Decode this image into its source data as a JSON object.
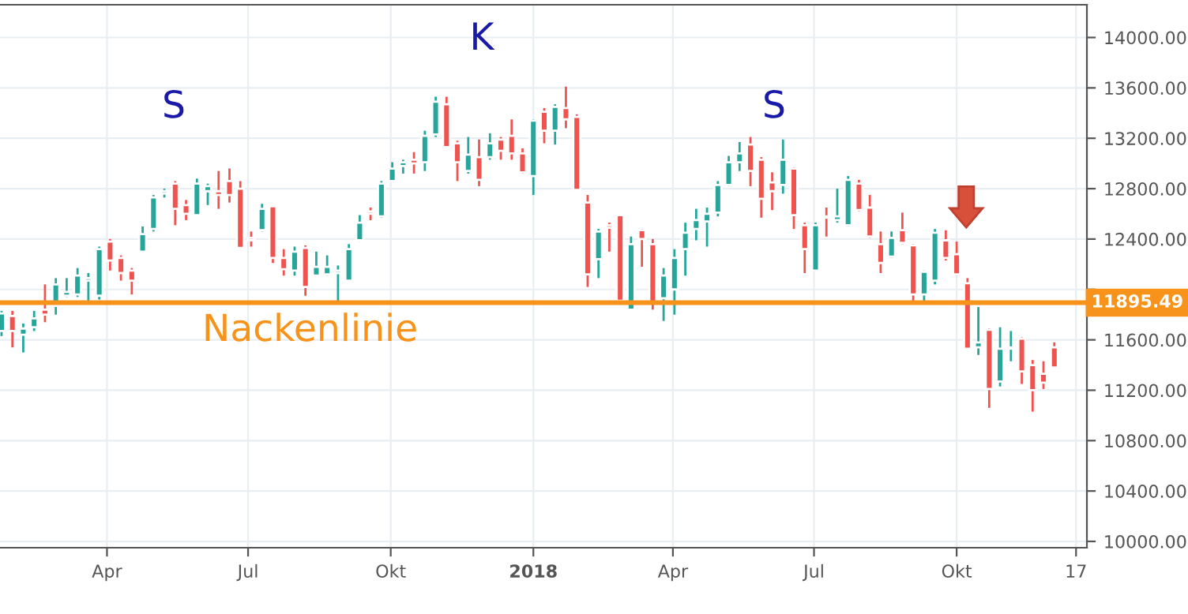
{
  "chart_data": {
    "type": "candlestick",
    "x": [
      "2017-01-23",
      "2017-01-30",
      "2017-02-06",
      "2017-02-13",
      "2017-02-20",
      "2017-02-27",
      "2017-03-06",
      "2017-03-13",
      "2017-03-20",
      "2017-03-27",
      "2017-04-03",
      "2017-04-10",
      "2017-04-17",
      "2017-04-24",
      "2017-05-01",
      "2017-05-08",
      "2017-05-15",
      "2017-05-22",
      "2017-05-29",
      "2017-06-05",
      "2017-06-12",
      "2017-06-19",
      "2017-06-26",
      "2017-07-03",
      "2017-07-10",
      "2017-07-17",
      "2017-07-24",
      "2017-07-31",
      "2017-08-07",
      "2017-08-14",
      "2017-08-21",
      "2017-08-28",
      "2017-09-04",
      "2017-09-11",
      "2017-09-18",
      "2017-09-25",
      "2017-10-02",
      "2017-10-09",
      "2017-10-16",
      "2017-10-23",
      "2017-10-30",
      "2017-11-06",
      "2017-11-13",
      "2017-11-20",
      "2017-11-27",
      "2017-12-04",
      "2017-12-11",
      "2017-12-18",
      "2017-12-25",
      "2018-01-01",
      "2018-01-08",
      "2018-01-15",
      "2018-01-22",
      "2018-01-29",
      "2018-02-05",
      "2018-02-12",
      "2018-02-19",
      "2018-02-26",
      "2018-03-05",
      "2018-03-12",
      "2018-03-19",
      "2018-03-26",
      "2018-04-02",
      "2018-04-09",
      "2018-04-16",
      "2018-04-23",
      "2018-04-30",
      "2018-05-07",
      "2018-05-14",
      "2018-05-21",
      "2018-05-28",
      "2018-06-04",
      "2018-06-11",
      "2018-06-18",
      "2018-06-25",
      "2018-07-02",
      "2018-07-09",
      "2018-07-16",
      "2018-07-23",
      "2018-07-30",
      "2018-08-06",
      "2018-08-13",
      "2018-08-20",
      "2018-08-27",
      "2018-09-03",
      "2018-09-10",
      "2018-09-17",
      "2018-09-24",
      "2018-10-01",
      "2018-10-08",
      "2018-10-15",
      "2018-10-22",
      "2018-10-29",
      "2018-11-05",
      "2018-11-12",
      "2018-11-19",
      "2018-11-26",
      "2018-12-03"
    ],
    "ohlc": [
      [
        11670,
        11830,
        11630,
        11810
      ],
      [
        11790,
        11830,
        11540,
        11670
      ],
      [
        11640,
        11730,
        11500,
        11690
      ],
      [
        11700,
        11830,
        11670,
        11770
      ],
      [
        11840,
        12040,
        11740,
        11800
      ],
      [
        11870,
        12090,
        11800,
        12040
      ],
      [
        11950,
        12090,
        11940,
        11980
      ],
      [
        11960,
        12170,
        11940,
        12110
      ],
      [
        12070,
        12130,
        11880,
        12090
      ],
      [
        11950,
        12340,
        11920,
        12320
      ],
      [
        12380,
        12400,
        12150,
        12230
      ],
      [
        12250,
        12270,
        12070,
        12130
      ],
      [
        12150,
        12170,
        11960,
        12070
      ],
      [
        12300,
        12500,
        12300,
        12440
      ],
      [
        12480,
        12750,
        12460,
        12730
      ],
      [
        12760,
        12800,
        12730,
        12780
      ],
      [
        12840,
        12860,
        12510,
        12640
      ],
      [
        12670,
        12710,
        12550,
        12600
      ],
      [
        12590,
        12880,
        12590,
        12840
      ],
      [
        12780,
        12840,
        12670,
        12820
      ],
      [
        12780,
        12940,
        12640,
        12750
      ],
      [
        12860,
        12960,
        12690,
        12750
      ],
      [
        12800,
        12860,
        12330,
        12330
      ],
      [
        12410,
        12460,
        12340,
        12390
      ],
      [
        12470,
        12680,
        12460,
        12640
      ],
      [
        12660,
        12660,
        12210,
        12250
      ],
      [
        12250,
        12320,
        12110,
        12160
      ],
      [
        12150,
        12340,
        12110,
        12300
      ],
      [
        12330,
        12350,
        11950,
        12020
      ],
      [
        12110,
        12300,
        12110,
        12180
      ],
      [
        12120,
        12270,
        12110,
        12180
      ],
      [
        12130,
        12190,
        11900,
        12150
      ],
      [
        12070,
        12360,
        12070,
        12320
      ],
      [
        12390,
        12590,
        12380,
        12530
      ],
      [
        12620,
        12650,
        12550,
        12600
      ],
      [
        12580,
        12860,
        12570,
        12840
      ],
      [
        12860,
        13010,
        12860,
        12960
      ],
      [
        12980,
        13030,
        12920,
        13010
      ],
      [
        13030,
        13090,
        12920,
        13000
      ],
      [
        13010,
        13260,
        12940,
        13220
      ],
      [
        13230,
        13530,
        13210,
        13490
      ],
      [
        13470,
        13530,
        13130,
        13130
      ],
      [
        13160,
        13180,
        12860,
        13010
      ],
      [
        12940,
        13210,
        12920,
        13070
      ],
      [
        13050,
        13190,
        12820,
        12870
      ],
      [
        13050,
        13240,
        13030,
        13160
      ],
      [
        13190,
        13210,
        13030,
        13100
      ],
      [
        13220,
        13350,
        13030,
        13080
      ],
      [
        13080,
        13120,
        12920,
        12930
      ],
      [
        12900,
        13350,
        12750,
        13340
      ],
      [
        13410,
        13440,
        13160,
        13260
      ],
      [
        13260,
        13470,
        13150,
        13450
      ],
      [
        13440,
        13610,
        13280,
        13350
      ],
      [
        13370,
        13390,
        12790,
        12790
      ],
      [
        12690,
        12750,
        12020,
        12120
      ],
      [
        12240,
        12480,
        12090,
        12460
      ],
      [
        12510,
        12530,
        12300,
        12490
      ],
      [
        12590,
        12590,
        11900,
        11910
      ],
      [
        11840,
        12420,
        11840,
        12360
      ],
      [
        12470,
        12480,
        12180,
        12400
      ],
      [
        12360,
        12400,
        11840,
        11890
      ],
      [
        11930,
        12170,
        11750,
        12110
      ],
      [
        12000,
        12320,
        11800,
        12250
      ],
      [
        12320,
        12530,
        12110,
        12450
      ],
      [
        12480,
        12640,
        12390,
        12550
      ],
      [
        12540,
        12650,
        12340,
        12600
      ],
      [
        12610,
        12860,
        12580,
        12830
      ],
      [
        12830,
        13060,
        12820,
        13010
      ],
      [
        13010,
        13170,
        12940,
        13080
      ],
      [
        13150,
        13210,
        12820,
        12940
      ],
      [
        13030,
        13050,
        12570,
        12720
      ],
      [
        12850,
        12930,
        12630,
        12780
      ],
      [
        12830,
        13190,
        12760,
        13030
      ],
      [
        12960,
        12970,
        12480,
        12590
      ],
      [
        12510,
        12530,
        12130,
        12320
      ],
      [
        12150,
        12530,
        12150,
        12510
      ],
      [
        12580,
        12650,
        12420,
        12570
      ],
      [
        12550,
        12800,
        12530,
        12580
      ],
      [
        12510,
        12900,
        12500,
        12870
      ],
      [
        12840,
        12870,
        12620,
        12630
      ],
      [
        12650,
        12750,
        12410,
        12420
      ],
      [
        12360,
        12460,
        12130,
        12210
      ],
      [
        12260,
        12460,
        12250,
        12410
      ],
      [
        12470,
        12610,
        12360,
        12370
      ],
      [
        12350,
        12360,
        11900,
        11960
      ],
      [
        11960,
        12150,
        11890,
        12140
      ],
      [
        12070,
        12480,
        12040,
        12450
      ],
      [
        12390,
        12470,
        12230,
        12250
      ],
      [
        12280,
        12380,
        12110,
        12120
      ],
      [
        12050,
        12090,
        11530,
        11530
      ],
      [
        11540,
        11860,
        11480,
        11580
      ],
      [
        11680,
        11690,
        11060,
        11210
      ],
      [
        11270,
        11700,
        11230,
        11530
      ],
      [
        11530,
        11670,
        11430,
        11540
      ],
      [
        11610,
        11620,
        11250,
        11350
      ],
      [
        11400,
        11440,
        11030,
        11200
      ],
      [
        11330,
        11430,
        11210,
        11260
      ],
      [
        11540,
        11580,
        11380,
        11380
      ]
    ],
    "xlim": [
      "2017-01-22",
      "2018-12-24"
    ],
    "xticks": [
      {
        "value": "2017-04-01",
        "label": "Apr"
      },
      {
        "value": "2017-07-01",
        "label": "Jul"
      },
      {
        "value": "2017-10-01",
        "label": "Okt"
      },
      {
        "value": "2018-01-01",
        "label": "2018"
      },
      {
        "value": "2018-04-01",
        "label": "Apr"
      },
      {
        "value": "2018-07-01",
        "label": "Jul"
      },
      {
        "value": "2018-10-01",
        "label": "Okt"
      },
      {
        "value": "2018-12-17",
        "label": "17"
      }
    ],
    "ylim": [
      9950,
      14260
    ],
    "yticks": [
      {
        "value": 10000,
        "label": "10000.00"
      },
      {
        "value": 10400,
        "label": "10400.00"
      },
      {
        "value": 10800,
        "label": "10800.00"
      },
      {
        "value": 11200,
        "label": "11200.00"
      },
      {
        "value": 11600,
        "label": "11600.00"
      },
      {
        "value": 12000,
        "label": null
      },
      {
        "value": 12400,
        "label": "12400.00"
      },
      {
        "value": 12800,
        "label": "12800.00"
      },
      {
        "value": 13200,
        "label": "13200.00"
      },
      {
        "value": 13600,
        "label": "13600.00"
      },
      {
        "value": 14000,
        "label": "14000.00"
      }
    ],
    "grid": true,
    "ref_lines": [
      {
        "axis": "y",
        "value": 11895.49,
        "label": "Nackenlinie",
        "color": "#f7931a"
      }
    ],
    "annotations": [
      "S",
      "K",
      "S",
      "11895.49"
    ]
  }
}
